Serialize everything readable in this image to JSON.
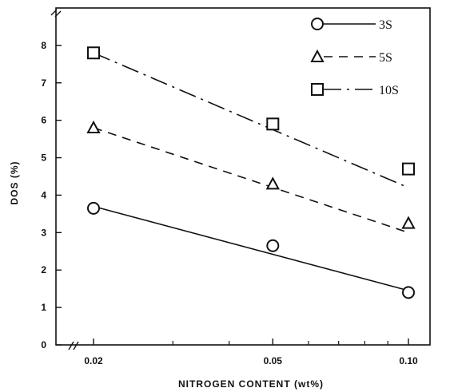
{
  "chart_data": {
    "type": "scatter",
    "title": "",
    "xlabel": "NITROGEN CONTENT (wt%)",
    "ylabel": "DOS (%)",
    "x_scale": "log",
    "x_ticks": [
      0.02,
      0.05,
      0.1
    ],
    "x_tick_labels": [
      "0.02",
      "0.05",
      "0.10"
    ],
    "y_ticks": [
      0,
      1,
      2,
      3,
      4,
      5,
      6,
      7,
      8
    ],
    "y_tick_labels": [
      "0",
      "1",
      "2",
      "3",
      "4",
      "5",
      "6",
      "7",
      "8"
    ],
    "ylim": [
      0,
      9
    ],
    "grid": false,
    "legend_position": "top-right",
    "axis_break_marks": true,
    "series": [
      {
        "name": "3S",
        "marker": "circle",
        "line_style": "solid",
        "x": [
          0.02,
          0.05,
          0.1
        ],
        "y": [
          3.65,
          2.65,
          1.4
        ],
        "fit_line": [
          [
            0.02,
            3.7
          ],
          [
            0.1,
            1.45
          ]
        ]
      },
      {
        "name": "5S",
        "marker": "triangle",
        "line_style": "dashed",
        "x": [
          0.02,
          0.05,
          0.1
        ],
        "y": [
          5.8,
          4.3,
          3.25
        ],
        "fit_line": [
          [
            0.02,
            5.8
          ],
          [
            0.1,
            3.0
          ]
        ]
      },
      {
        "name": "10S",
        "marker": "square",
        "line_style": "dash-dot",
        "x": [
          0.02,
          0.05,
          0.1
        ],
        "y": [
          7.8,
          5.9,
          4.7
        ],
        "fit_line": [
          [
            0.02,
            7.8
          ],
          [
            0.1,
            4.2
          ]
        ]
      }
    ]
  }
}
